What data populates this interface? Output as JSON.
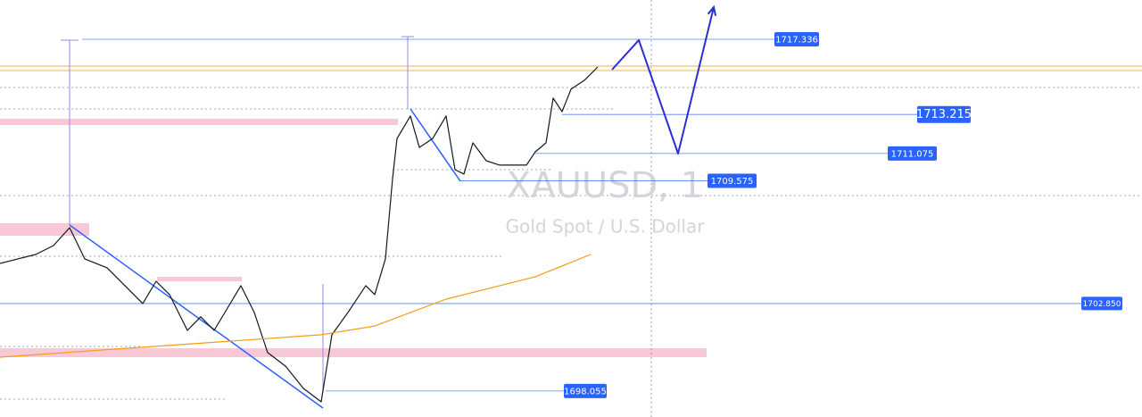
{
  "chart_data": {
    "type": "line",
    "watermark": "XAUUSD, 1",
    "watermark_subtitle": "Gold Spot / U.S. Dollar",
    "xlim": [
      0,
      1280
    ],
    "ylim": [
      1696.63,
      1719.49
    ],
    "series": [
      {
        "color": "#131722",
        "x": [
          0,
          20,
          40,
          60,
          78,
          95,
          120,
          140,
          160,
          175,
          190,
          210,
          225,
          240,
          255,
          270,
          285,
          300,
          320,
          340,
          360,
          372,
          390,
          410,
          420,
          432,
          440,
          445,
          460,
          470,
          485,
          500,
          510,
          520,
          530,
          545,
          560,
          575,
          590,
          600,
          612,
          620,
          630,
          640,
          655,
          670
        ],
        "values": [
          1705.05,
          1705.3,
          1705.54,
          1706.03,
          1707.01,
          1705.3,
          1704.81,
          1703.83,
          1702.85,
          1704.07,
          1703.34,
          1701.38,
          1702.12,
          1701.38,
          1702.6,
          1703.83,
          1702.36,
          1700.16,
          1699.42,
          1698.2,
          1697.46,
          1701.14,
          1702.36,
          1703.83,
          1703.34,
          1705.3,
          1709.7,
          1711.9,
          1713.13,
          1711.41,
          1711.9,
          1713.13,
          1710.19,
          1709.95,
          1711.66,
          1710.68,
          1710.44,
          1710.44,
          1710.44,
          1711.17,
          1711.66,
          1714.11,
          1713.37,
          1714.6,
          1715.09,
          1715.82
        ]
      },
      {
        "color": "#f39c12",
        "x": [
          0,
          360,
          420,
          500,
          600,
          662
        ],
        "values": [
          1699.91,
          1701.14,
          1701.62,
          1703.09,
          1704.32,
          1705.54
        ]
      },
      {
        "color": "#2a2ed6",
        "x": [
          686,
          716,
          760,
          800
        ],
        "values": [
          1715.67,
          1717.29,
          1711.07,
          1719.1
        ]
      }
    ],
    "levels": {
      "values": [
        1717.336,
        1713.215,
        1711.075,
        1709.575,
        1702.85,
        1698.055
      ],
      "value_labels": [
        "1717.336",
        "1713.215",
        "1711.075",
        "1709.575",
        "1702.850",
        "1698.055"
      ],
      "color": "#2962ff"
    }
  }
}
